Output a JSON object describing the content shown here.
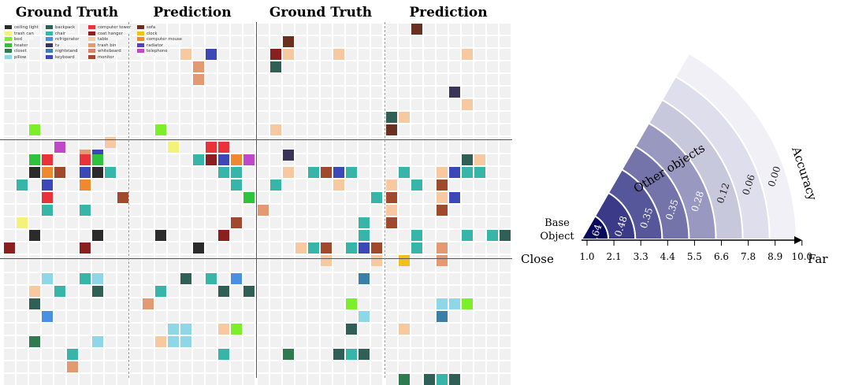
{
  "headers": [
    "Ground Truth",
    "Prediction",
    "Ground Truth",
    "Prediction"
  ],
  "legend": [
    {
      "label": "ceiling light",
      "color": "#2b2b2b"
    },
    {
      "label": "trash can",
      "color": "#f5f27a"
    },
    {
      "label": "bed",
      "color": "#7bef2a"
    },
    {
      "label": "heater",
      "color": "#2fc23c"
    },
    {
      "label": "closet",
      "color": "#2f7a4f"
    },
    {
      "label": "pillow",
      "color": "#8fd6e6"
    },
    {
      "label": "backpack",
      "color": "#2f5f55"
    },
    {
      "label": "chair",
      "color": "#36b5a8"
    },
    {
      "label": "refrigerator",
      "color": "#4a90e2"
    },
    {
      "label": "tv",
      "color": "#3a3556"
    },
    {
      "label": "nightstand",
      "color": "#3a7fa6"
    },
    {
      "label": "keyboard",
      "color": "#3d48b8"
    },
    {
      "label": "computer tower",
      "color": "#e8333a"
    },
    {
      "label": "coat hanger",
      "color": "#8b1e1e"
    },
    {
      "label": "table",
      "color": "#f6c9a1"
    },
    {
      "label": "trash bin",
      "color": "#e39a73"
    },
    {
      "label": "whiteboard",
      "color": "#d4826a"
    },
    {
      "label": "monitor",
      "color": "#a0492c"
    },
    {
      "label": "sofa",
      "color": "#6b2f1f"
    },
    {
      "label": "clock",
      "color": "#f0c020"
    },
    {
      "label": "computer mouse",
      "color": "#f08830"
    },
    {
      "label": "radiator",
      "color": "#5a3fb0"
    },
    {
      "label": "telephone",
      "color": "#c048c8"
    }
  ],
  "objects": [
    {
      "p": 0,
      "x": 2,
      "y": 8,
      "c": "#7bef2a"
    },
    {
      "p": 0,
      "x": 8,
      "y": 9,
      "c": "#f6c9a1"
    },
    {
      "p": 0,
      "x": 6,
      "y": 10,
      "c": "#e39a73"
    },
    {
      "p": 0,
      "x": 7,
      "y": 10,
      "c": "#3d48b8"
    },
    {
      "p": 1,
      "x": 4,
      "y": 2,
      "c": "#f6c9a1"
    },
    {
      "p": 1,
      "x": 6,
      "y": 2,
      "c": "#3d48b8"
    },
    {
      "p": 1,
      "x": 5,
      "y": 3,
      "c": "#e39a73"
    },
    {
      "p": 1,
      "x": 5,
      "y": 4,
      "c": "#e39a73"
    },
    {
      "p": 1,
      "x": 2,
      "y": 8,
      "c": "#7bef2a"
    },
    {
      "p": 2,
      "x": 2,
      "y": 1,
      "c": "#6b2f1f"
    },
    {
      "p": 2,
      "x": 1,
      "y": 2,
      "c": "#8b1e1e"
    },
    {
      "p": 2,
      "x": 2,
      "y": 2,
      "c": "#f6c9a1"
    },
    {
      "p": 2,
      "x": 6,
      "y": 2,
      "c": "#f6c9a1"
    },
    {
      "p": 2,
      "x": 1,
      "y": 3,
      "c": "#2f5f55"
    },
    {
      "p": 2,
      "x": 1,
      "y": 8,
      "c": "#f6c9a1"
    },
    {
      "p": 2,
      "x": 2,
      "y": 10,
      "c": "#3a3556"
    },
    {
      "p": 3,
      "x": 2,
      "y": 0,
      "c": "#6b2f1f"
    },
    {
      "p": 3,
      "x": 6,
      "y": 2,
      "c": "#f6c9a1"
    },
    {
      "p": 3,
      "x": 5,
      "y": 5,
      "c": "#3a3556"
    },
    {
      "p": 3,
      "x": 6,
      "y": 6,
      "c": "#f6c9a1"
    },
    {
      "p": 3,
      "x": 0,
      "y": 7,
      "c": "#2f5f55"
    },
    {
      "p": 3,
      "x": 1,
      "y": 7,
      "c": "#f6c9a1"
    },
    {
      "p": 3,
      "x": 0,
      "y": 8,
      "c": "#6b2f1f"
    },
    {
      "p": 4,
      "x": 4,
      "y": 0,
      "c": "#c048c8"
    },
    {
      "p": 4,
      "x": 2,
      "y": 1,
      "c": "#2fc23c"
    },
    {
      "p": 4,
      "x": 3,
      "y": 1,
      "c": "#e8333a"
    },
    {
      "p": 4,
      "x": 6,
      "y": 1,
      "c": "#e8333a"
    },
    {
      "p": 4,
      "x": 7,
      "y": 1,
      "c": "#2fc23c"
    },
    {
      "p": 4,
      "x": 2,
      "y": 2,
      "c": "#2b2b2b"
    },
    {
      "p": 4,
      "x": 3,
      "y": 2,
      "c": "#f08830"
    },
    {
      "p": 4,
      "x": 4,
      "y": 2,
      "c": "#a0492c"
    },
    {
      "p": 4,
      "x": 6,
      "y": 2,
      "c": "#3d48b8"
    },
    {
      "p": 4,
      "x": 7,
      "y": 2,
      "c": "#2b2b2b"
    },
    {
      "p": 4,
      "x": 8,
      "y": 2,
      "c": "#36b5a8"
    },
    {
      "p": 4,
      "x": 1,
      "y": 3,
      "c": "#36b5a8"
    },
    {
      "p": 4,
      "x": 3,
      "y": 3,
      "c": "#3d48b8"
    },
    {
      "p": 4,
      "x": 6,
      "y": 3,
      "c": "#f08830"
    },
    {
      "p": 4,
      "x": 3,
      "y": 4,
      "c": "#e8333a"
    },
    {
      "p": 4,
      "x": 9,
      "y": 4,
      "c": "#a0492c"
    },
    {
      "p": 4,
      "x": 3,
      "y": 5,
      "c": "#36b5a8"
    },
    {
      "p": 4,
      "x": 6,
      "y": 5,
      "c": "#36b5a8"
    },
    {
      "p": 4,
      "x": 1,
      "y": 6,
      "c": "#f5f27a"
    },
    {
      "p": 4,
      "x": 2,
      "y": 7,
      "c": "#2b2b2b"
    },
    {
      "p": 4,
      "x": 7,
      "y": 7,
      "c": "#2b2b2b"
    },
    {
      "p": 4,
      "x": 0,
      "y": 8,
      "c": "#8b1e1e"
    },
    {
      "p": 4,
      "x": 6,
      "y": 8,
      "c": "#8b1e1e"
    },
    {
      "p": 5,
      "x": 3,
      "y": 0,
      "c": "#f5f27a"
    },
    {
      "p": 5,
      "x": 6,
      "y": 0,
      "c": "#e8333a"
    },
    {
      "p": 5,
      "x": 7,
      "y": 0,
      "c": "#e8333a"
    },
    {
      "p": 5,
      "x": 5,
      "y": 1,
      "c": "#36b5a8"
    },
    {
      "p": 5,
      "x": 6,
      "y": 1,
      "c": "#8b1e1e"
    },
    {
      "p": 5,
      "x": 7,
      "y": 1,
      "c": "#3d48b8"
    },
    {
      "p": 5,
      "x": 8,
      "y": 1,
      "c": "#f08830"
    },
    {
      "p": 5,
      "x": 9,
      "y": 1,
      "c": "#c048c8"
    },
    {
      "p": 5,
      "x": 7,
      "y": 2,
      "c": "#36b5a8"
    },
    {
      "p": 5,
      "x": 8,
      "y": 2,
      "c": "#36b5a8"
    },
    {
      "p": 5,
      "x": 8,
      "y": 3,
      "c": "#36b5a8"
    },
    {
      "p": 5,
      "x": 9,
      "y": 4,
      "c": "#2fc23c"
    },
    {
      "p": 5,
      "x": 8,
      "y": 6,
      "c": "#a0492c"
    },
    {
      "p": 5,
      "x": 2,
      "y": 7,
      "c": "#2b2b2b"
    },
    {
      "p": 5,
      "x": 7,
      "y": 7,
      "c": "#8b1e1e"
    },
    {
      "p": 5,
      "x": 5,
      "y": 8,
      "c": "#2b2b2b"
    },
    {
      "p": 6,
      "x": 2,
      "y": 2,
      "c": "#f6c9a1"
    },
    {
      "p": 6,
      "x": 4,
      "y": 2,
      "c": "#36b5a8"
    },
    {
      "p": 6,
      "x": 5,
      "y": 2,
      "c": "#a0492c"
    },
    {
      "p": 6,
      "x": 6,
      "y": 2,
      "c": "#3d48b8"
    },
    {
      "p": 6,
      "x": 7,
      "y": 2,
      "c": "#36b5a8"
    },
    {
      "p": 6,
      "x": 1,
      "y": 3,
      "c": "#36b5a8"
    },
    {
      "p": 6,
      "x": 6,
      "y": 3,
      "c": "#f6c9a1"
    },
    {
      "p": 6,
      "x": 9,
      "y": 4,
      "c": "#36b5a8"
    },
    {
      "p": 6,
      "x": 0,
      "y": 5,
      "c": "#e39a73"
    },
    {
      "p": 6,
      "x": 8,
      "y": 6,
      "c": "#36b5a8"
    },
    {
      "p": 6,
      "x": 8,
      "y": 7,
      "c": "#36b5a8"
    },
    {
      "p": 6,
      "x": 3,
      "y": 8,
      "c": "#f6c9a1"
    },
    {
      "p": 6,
      "x": 4,
      "y": 8,
      "c": "#36b5a8"
    },
    {
      "p": 6,
      "x": 5,
      "y": 8,
      "c": "#a0492c"
    },
    {
      "p": 6,
      "x": 7,
      "y": 8,
      "c": "#36b5a8"
    },
    {
      "p": 6,
      "x": 8,
      "y": 8,
      "c": "#3d48b8"
    },
    {
      "p": 6,
      "x": 9,
      "y": 8,
      "c": "#a0492c"
    },
    {
      "p": 6,
      "x": 5,
      "y": 9,
      "c": "#f6c9a1"
    },
    {
      "p": 6,
      "x": 9,
      "y": 9,
      "c": "#f6c9a1"
    },
    {
      "p": 7,
      "x": 6,
      "y": 1,
      "c": "#2f5f55"
    },
    {
      "p": 7,
      "x": 7,
      "y": 1,
      "c": "#f6c9a1"
    },
    {
      "p": 7,
      "x": 1,
      "y": 2,
      "c": "#36b5a8"
    },
    {
      "p": 7,
      "x": 4,
      "y": 2,
      "c": "#f6c9a1"
    },
    {
      "p": 7,
      "x": 5,
      "y": 2,
      "c": "#3d48b8"
    },
    {
      "p": 7,
      "x": 6,
      "y": 2,
      "c": "#36b5a8"
    },
    {
      "p": 7,
      "x": 7,
      "y": 2,
      "c": "#36b5a8"
    },
    {
      "p": 7,
      "x": 0,
      "y": 3,
      "c": "#f6c9a1"
    },
    {
      "p": 7,
      "x": 2,
      "y": 3,
      "c": "#36b5a8"
    },
    {
      "p": 7,
      "x": 4,
      "y": 3,
      "c": "#a0492c"
    },
    {
      "p": 7,
      "x": 0,
      "y": 4,
      "c": "#a0492c"
    },
    {
      "p": 7,
      "x": 4,
      "y": 4,
      "c": "#f6c9a1"
    },
    {
      "p": 7,
      "x": 5,
      "y": 4,
      "c": "#3d48b8"
    },
    {
      "p": 7,
      "x": 0,
      "y": 5,
      "c": "#f6c9a1"
    },
    {
      "p": 7,
      "x": 4,
      "y": 5,
      "c": "#a0492c"
    },
    {
      "p": 7,
      "x": 0,
      "y": 6,
      "c": "#a0492c"
    },
    {
      "p": 7,
      "x": 2,
      "y": 7,
      "c": "#36b5a8"
    },
    {
      "p": 7,
      "x": 6,
      "y": 7,
      "c": "#36b5a8"
    },
    {
      "p": 7,
      "x": 8,
      "y": 7,
      "c": "#36b5a8"
    },
    {
      "p": 7,
      "x": 9,
      "y": 7,
      "c": "#2f5f55"
    },
    {
      "p": 7,
      "x": 2,
      "y": 8,
      "c": "#36b5a8"
    },
    {
      "p": 7,
      "x": 4,
      "y": 8,
      "c": "#e39a73"
    },
    {
      "p": 7,
      "x": 1,
      "y": 9,
      "c": "#f0c020"
    },
    {
      "p": 7,
      "x": 4,
      "y": 9,
      "c": "#e39a73"
    },
    {
      "p": 8,
      "x": 3,
      "y": 1,
      "c": "#8fd6e6"
    },
    {
      "p": 8,
      "x": 6,
      "y": 1,
      "c": "#36b5a8"
    },
    {
      "p": 8,
      "x": 7,
      "y": 1,
      "c": "#8fd6e6"
    },
    {
      "p": 8,
      "x": 2,
      "y": 2,
      "c": "#f6c9a1"
    },
    {
      "p": 8,
      "x": 4,
      "y": 2,
      "c": "#36b5a8"
    },
    {
      "p": 8,
      "x": 7,
      "y": 2,
      "c": "#2f5f55"
    },
    {
      "p": 8,
      "x": 2,
      "y": 3,
      "c": "#2f5f55"
    },
    {
      "p": 8,
      "x": 3,
      "y": 4,
      "c": "#4a90e2"
    },
    {
      "p": 8,
      "x": 2,
      "y": 6,
      "c": "#2f7a4f"
    },
    {
      "p": 8,
      "x": 7,
      "y": 6,
      "c": "#8fd6e6"
    },
    {
      "p": 8,
      "x": 5,
      "y": 7,
      "c": "#36b5a8"
    },
    {
      "p": 8,
      "x": 5,
      "y": 8,
      "c": "#e39a73"
    },
    {
      "p": 9,
      "x": 4,
      "y": 1,
      "c": "#2f5f55"
    },
    {
      "p": 9,
      "x": 6,
      "y": 1,
      "c": "#36b5a8"
    },
    {
      "p": 9,
      "x": 8,
      "y": 1,
      "c": "#4a90e2"
    },
    {
      "p": 9,
      "x": 2,
      "y": 2,
      "c": "#36b5a8"
    },
    {
      "p": 9,
      "x": 7,
      "y": 2,
      "c": "#2f5f55"
    },
    {
      "p": 9,
      "x": 9,
      "y": 2,
      "c": "#2f5f55"
    },
    {
      "p": 9,
      "x": 1,
      "y": 3,
      "c": "#e39a73"
    },
    {
      "p": 9,
      "x": 3,
      "y": 5,
      "c": "#8fd6e6"
    },
    {
      "p": 9,
      "x": 4,
      "y": 5,
      "c": "#8fd6e6"
    },
    {
      "p": 9,
      "x": 7,
      "y": 5,
      "c": "#f6c9a1"
    },
    {
      "p": 9,
      "x": 8,
      "y": 5,
      "c": "#7bef2a"
    },
    {
      "p": 9,
      "x": 2,
      "y": 6,
      "c": "#f6c9a1"
    },
    {
      "p": 9,
      "x": 3,
      "y": 6,
      "c": "#8fd6e6"
    },
    {
      "p": 9,
      "x": 4,
      "y": 6,
      "c": "#8fd6e6"
    },
    {
      "p": 9,
      "x": 7,
      "y": 7,
      "c": "#36b5a8"
    },
    {
      "p": 10,
      "x": 8,
      "y": 1,
      "c": "#3a7fa6"
    },
    {
      "p": 10,
      "x": 7,
      "y": 3,
      "c": "#7bef2a"
    },
    {
      "p": 10,
      "x": 8,
      "y": 4,
      "c": "#8fd6e6"
    },
    {
      "p": 10,
      "x": 7,
      "y": 5,
      "c": "#2f5f55"
    },
    {
      "p": 10,
      "x": 2,
      "y": 7,
      "c": "#2f7a4f"
    },
    {
      "p": 10,
      "x": 6,
      "y": 7,
      "c": "#2f5f55"
    },
    {
      "p": 10,
      "x": 7,
      "y": 7,
      "c": "#36b5a8"
    },
    {
      "p": 10,
      "x": 8,
      "y": 7,
      "c": "#2f5f55"
    },
    {
      "p": 11,
      "x": 4,
      "y": 3,
      "c": "#8fd6e6"
    },
    {
      "p": 11,
      "x": 5,
      "y": 3,
      "c": "#8fd6e6"
    },
    {
      "p": 11,
      "x": 6,
      "y": 3,
      "c": "#7bef2a"
    },
    {
      "p": 11,
      "x": 4,
      "y": 4,
      "c": "#3a7fa6"
    },
    {
      "p": 11,
      "x": 1,
      "y": 5,
      "c": "#f6c9a1"
    },
    {
      "p": 11,
      "x": 1,
      "y": 9,
      "c": "#2f7a4f"
    },
    {
      "p": 11,
      "x": 3,
      "y": 9,
      "c": "#2f5f55"
    },
    {
      "p": 11,
      "x": 4,
      "y": 9,
      "c": "#36b5a8"
    },
    {
      "p": 11,
      "x": 5,
      "y": 9,
      "c": "#2f5f55"
    }
  ],
  "fan": {
    "base_label_line1": "Base",
    "base_label_line2": "Object",
    "other_label": "Other objects",
    "accuracy_label": "Accuracy",
    "close_label": "Close",
    "far_label": "Far",
    "ticks": [
      "1.0",
      "2.1",
      "3.3",
      "4.4",
      "5.5",
      "6.6",
      "7.8",
      "8.9",
      "10.0"
    ],
    "values": [
      "0.64",
      "0.48",
      "0.35",
      "0.35",
      "0.28",
      "0.12",
      "0.06",
      "0.00"
    ],
    "colors": [
      "#0b0b5e",
      "#3a3a88",
      "#56569a",
      "#7474aa",
      "#9898c0",
      "#c8c8dc",
      "#dedeec",
      "#f0f0f6"
    ]
  }
}
